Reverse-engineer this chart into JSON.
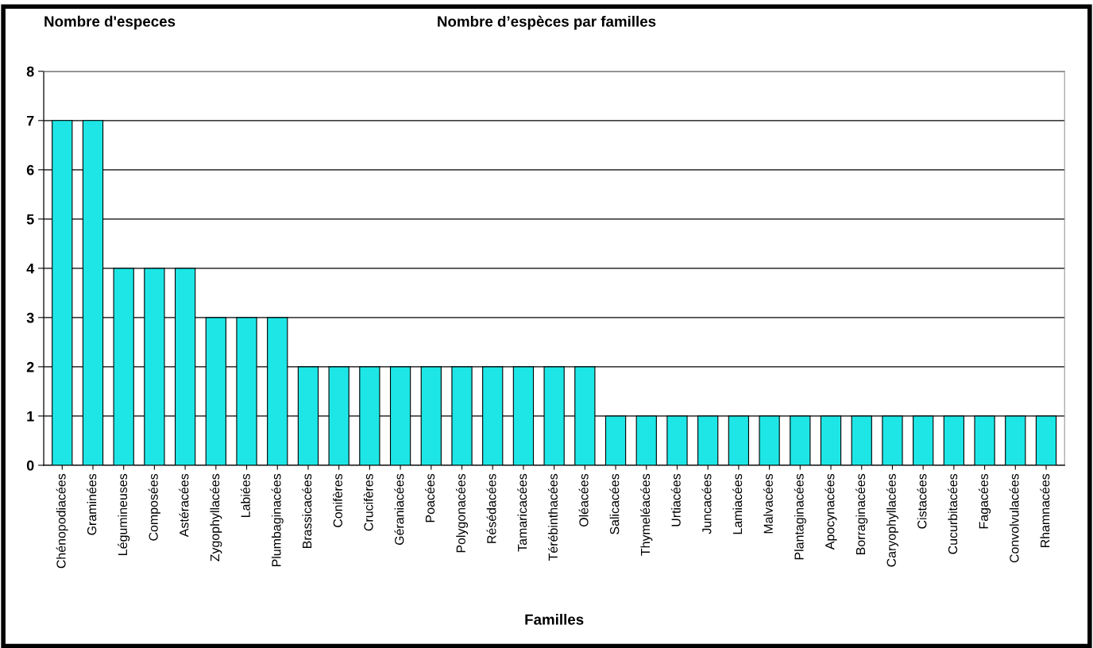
{
  "chart_data": {
    "type": "bar",
    "title": "Nombre d’espèces par familles",
    "xlabel": "Familles",
    "ylabel": "Nombre d'especes",
    "categories": [
      "Chénopodiacées",
      "Graminées",
      "Légumineuses",
      "Composées",
      "Astéracées",
      "Zygophyllacées",
      "Labiées",
      "Plumbaginacées",
      "Brassicacées",
      "Conifères",
      "Crucifères",
      "Géraniacées",
      "Poacées",
      "Polygonacées",
      "Résédacées",
      "Tamaricacées",
      "Térébinthacées",
      "Oléacées",
      "Salicacées",
      "Thymeléacées",
      "Urtiacées",
      "Juncacées",
      "Lamiacées",
      "Malvacées",
      "Plantaginacées",
      "Apocynacées",
      "Borraginacées",
      "Caryophyllacées",
      "Cistacées",
      "Cucurbitacées",
      "Fagacées",
      "Convolvulacées",
      "Rhamnacées"
    ],
    "values": [
      7,
      7,
      4,
      4,
      4,
      3,
      3,
      3,
      2,
      2,
      2,
      2,
      2,
      2,
      2,
      2,
      2,
      2,
      1,
      1,
      1,
      1,
      1,
      1,
      1,
      1,
      1,
      1,
      1,
      1,
      1,
      1,
      1
    ],
    "color": "#1ee6e6",
    "ylim": [
      0,
      8
    ],
    "yticks": [
      0,
      1,
      2,
      3,
      4,
      5,
      6,
      7,
      8
    ],
    "grid": "y",
    "legend": false
  }
}
